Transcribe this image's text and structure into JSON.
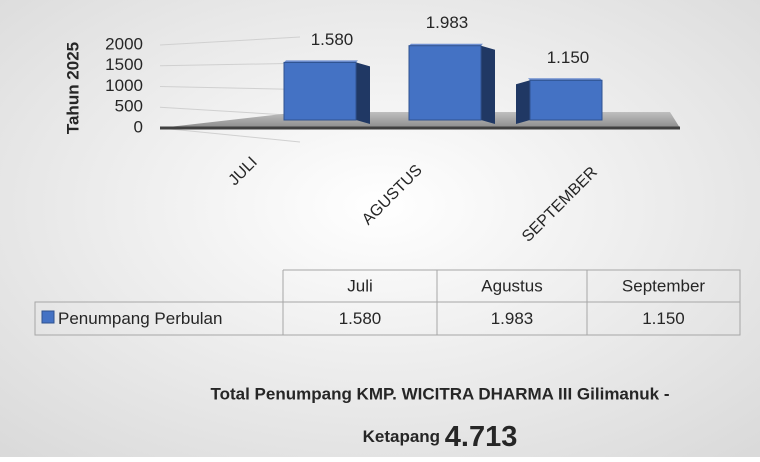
{
  "chart_data": {
    "type": "bar3d",
    "y_axis_label": "Tahun 2025",
    "categories": [
      "JULI",
      "AGUSTUS",
      "SEPTEMBER"
    ],
    "series": [
      {
        "name": "Penumpang Perbulan",
        "color": "#4472c4",
        "values": [
          1580,
          1983,
          1150
        ],
        "value_labels": [
          "1.580",
          "1.983",
          "1.150"
        ]
      }
    ],
    "ylim": [
      0,
      2000
    ],
    "yticks": [
      0,
      500,
      1000,
      1500,
      2000
    ],
    "grid": true,
    "data_table": {
      "columns": [
        "Juli",
        "Agustus",
        "September"
      ]
    },
    "total": {
      "label": "Total Penumpang KMP. WICITRA DHARMA III  Gilimanuk - Ketapang",
      "value": 4713,
      "value_label": "4.713"
    }
  }
}
